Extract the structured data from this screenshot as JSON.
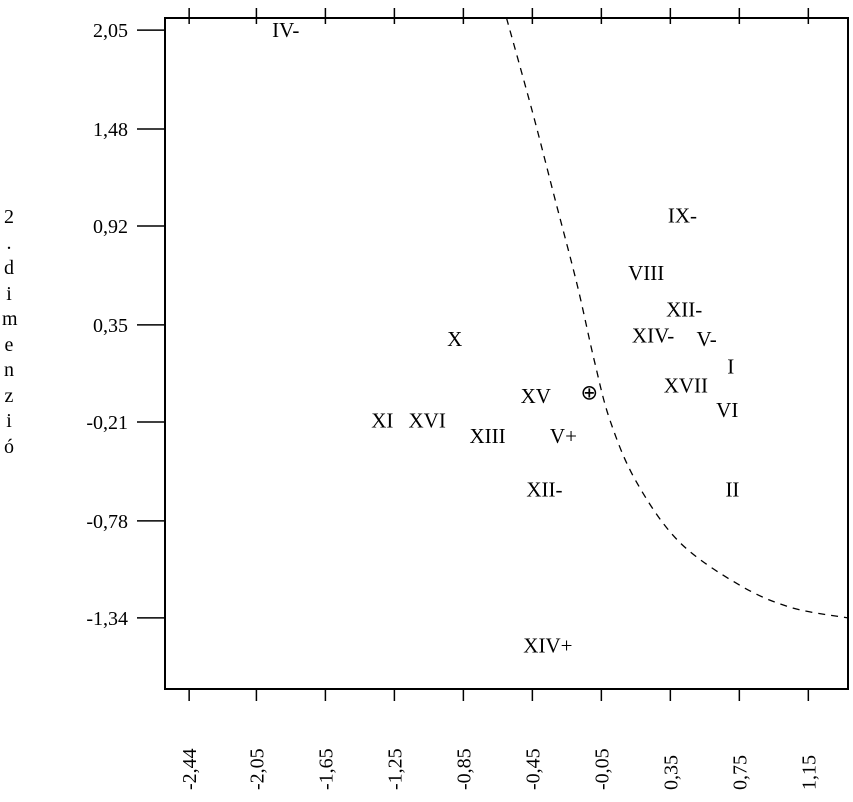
{
  "chart_data": {
    "type": "scatter",
    "title": "",
    "xlabel": "",
    "ylabel": "2. dimenzió",
    "xlim": [
      -2.58,
      1.38
    ],
    "ylim": [
      -1.75,
      2.12
    ],
    "x_ticks": [
      "-2,44",
      "-2,05",
      "-1,65",
      "-1,25",
      "-0,85",
      "-0,45",
      "-0,05",
      "0,35",
      "0,75",
      "1,15"
    ],
    "x_tick_values": [
      -2.44,
      -2.05,
      -1.65,
      -1.25,
      -0.85,
      -0.45,
      -0.05,
      0.35,
      0.75,
      1.15
    ],
    "y_ticks": [
      "2,05",
      "1,48",
      "0,92",
      "0,35",
      "-0,21",
      "-0,78",
      "-1,34"
    ],
    "y_tick_values": [
      2.05,
      1.48,
      0.92,
      0.35,
      -0.21,
      -0.78,
      -1.34
    ],
    "grid": false,
    "points": [
      {
        "label": "IV-",
        "x": -1.88,
        "y": 2.05
      },
      {
        "label": "IX-",
        "x": 0.42,
        "y": 0.98
      },
      {
        "label": "VIII",
        "x": 0.21,
        "y": 0.65
      },
      {
        "label": "XII-",
        "x": 0.43,
        "y": 0.44
      },
      {
        "label": "XIV-",
        "x": 0.25,
        "y": 0.29
      },
      {
        "label": "V-",
        "x": 0.56,
        "y": 0.27
      },
      {
        "label": "X",
        "x": -0.9,
        "y": 0.27
      },
      {
        "label": "I",
        "x": 0.7,
        "y": 0.11
      },
      {
        "label": "XVII",
        "x": 0.44,
        "y": 0.0
      },
      {
        "label": "VI",
        "x": 0.68,
        "y": -0.14
      },
      {
        "label": "XV",
        "x": -0.43,
        "y": -0.06
      },
      {
        "label": "XI",
        "x": -1.32,
        "y": -0.2
      },
      {
        "label": "XVI",
        "x": -1.06,
        "y": -0.2
      },
      {
        "label": "XIII",
        "x": -0.71,
        "y": -0.29
      },
      {
        "label": "V+",
        "x": -0.27,
        "y": -0.29
      },
      {
        "label": "XII-",
        "x": -0.38,
        "y": -0.6
      },
      {
        "label": "II",
        "x": 0.71,
        "y": -0.6
      },
      {
        "label": "XIV+",
        "x": -0.36,
        "y": -1.5
      }
    ],
    "origin_marker": {
      "symbol": "⊕",
      "x": -0.12,
      "y": -0.04
    },
    "curve": {
      "style": "dashed",
      "points": [
        [
          -0.6,
          2.12
        ],
        [
          -0.45,
          1.58
        ],
        [
          -0.32,
          1.08
        ],
        [
          -0.19,
          0.58
        ],
        [
          -0.09,
          0.14
        ],
        [
          0.0,
          -0.2
        ],
        [
          0.15,
          -0.55
        ],
        [
          0.4,
          -0.9
        ],
        [
          0.75,
          -1.15
        ],
        [
          1.05,
          -1.28
        ],
        [
          1.38,
          -1.34
        ]
      ]
    }
  }
}
